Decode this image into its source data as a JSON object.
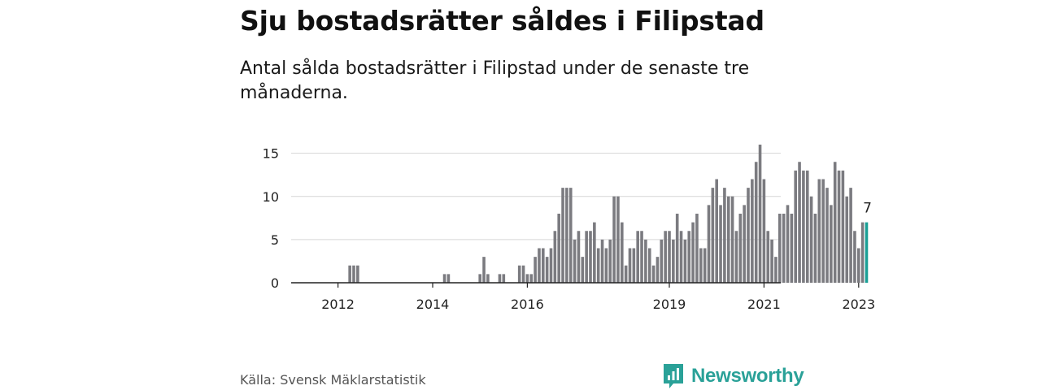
{
  "header": {
    "title": "Sju bostadsrätter såldes i Filipstad",
    "subtitle": "Antal sålda bostadsrätter i Filipstad under de senaste tre månaderna."
  },
  "footer": {
    "source": "Källa: Svensk Mäklarstatistik",
    "brand": "Newsworthy"
  },
  "colors": {
    "bar": "#7b7b80",
    "highlight": "#1a9f96",
    "grid": "#d6d6d6",
    "brand": "#2aa198"
  },
  "chart_data": {
    "type": "bar",
    "x_unit": "month",
    "start_month": "2011-07",
    "values": [
      0,
      0,
      0,
      0,
      0,
      0,
      0,
      0,
      0,
      2,
      2,
      2,
      0,
      0,
      0,
      0,
      0,
      0,
      0,
      0,
      0,
      0,
      0,
      0,
      0,
      0,
      0,
      0,
      0,
      0,
      0,
      0,
      0,
      1,
      1,
      0,
      0,
      0,
      0,
      0,
      0,
      0,
      1,
      3,
      1,
      0,
      0,
      1,
      1,
      0,
      0,
      0,
      2,
      2,
      1,
      1,
      3,
      4,
      4,
      3,
      4,
      6,
      8,
      11,
      11,
      11,
      5,
      6,
      3,
      6,
      6,
      7,
      4,
      5,
      4,
      5,
      10,
      10,
      7,
      2,
      4,
      4,
      6,
      6,
      5,
      4,
      2,
      3,
      5,
      6,
      6,
      5,
      8,
      6,
      5,
      6,
      7,
      8,
      4,
      4,
      9,
      11,
      12,
      9,
      11,
      10,
      10,
      6,
      8,
      9,
      11,
      12,
      14,
      16,
      12,
      6,
      5,
      3,
      8,
      8,
      9,
      8,
      13,
      14,
      13,
      13,
      10,
      8,
      12,
      12,
      11,
      9,
      14,
      13,
      13,
      10,
      11,
      6,
      4,
      7,
      7
    ],
    "highlight_last": true,
    "last_label": "7",
    "x_ticks": [
      "2012",
      "2014",
      "2016",
      "2019",
      "2021",
      "2023"
    ],
    "y_ticks": [
      "0",
      "5",
      "10",
      "15"
    ],
    "ylim": [
      0,
      16
    ],
    "grid": true,
    "title": "",
    "xlabel": "",
    "ylabel": ""
  }
}
